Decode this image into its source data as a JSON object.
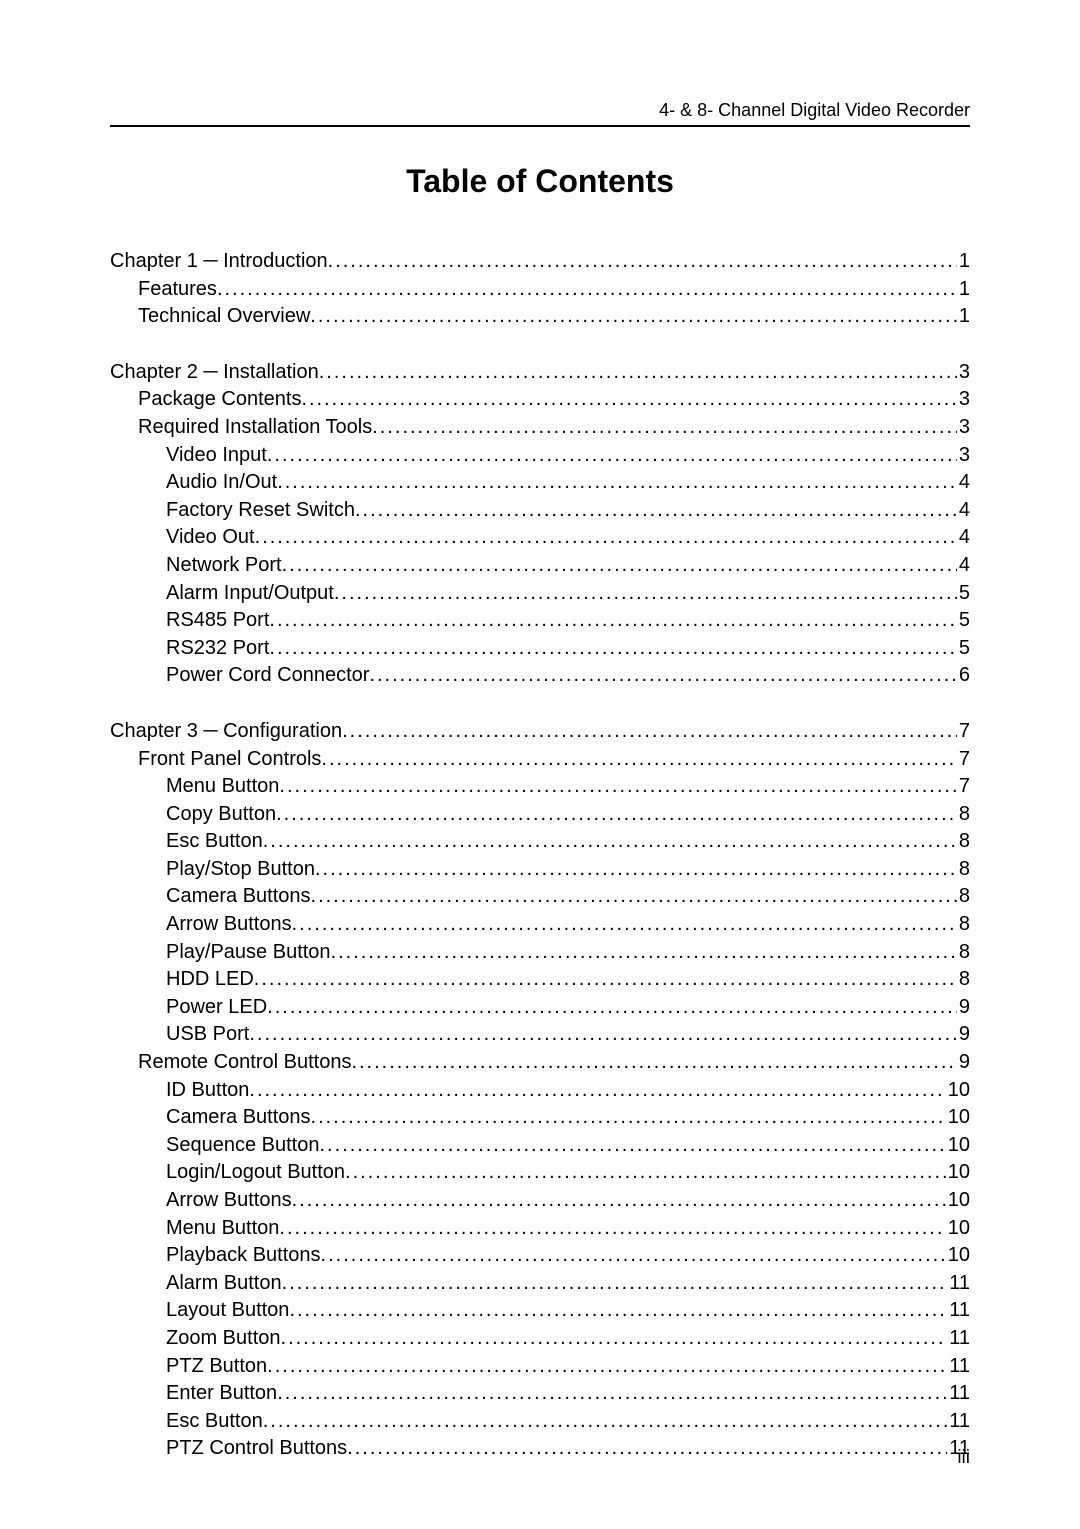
{
  "header": {
    "text": "4- & 8- Channel Digital Video Recorder"
  },
  "title": "Table of Contents",
  "footer": {
    "page_label": "iii"
  },
  "toc": {
    "sections": [
      {
        "entries": [
          {
            "label": "Chapter 1 ─ Introduction",
            "page": "1",
            "level": 0
          },
          {
            "label": "Features",
            "page": "1",
            "level": 1
          },
          {
            "label": "Technical Overview",
            "page": "1",
            "level": 1
          }
        ]
      },
      {
        "entries": [
          {
            "label": "Chapter 2 ─ Installation",
            "page": "3",
            "level": 0
          },
          {
            "label": "Package Contents",
            "page": "3",
            "level": 1
          },
          {
            "label": "Required Installation Tools",
            "page": "3",
            "level": 1
          },
          {
            "label": "Video Input",
            "page": "3",
            "level": 2
          },
          {
            "label": "Audio In/Out",
            "page": "4",
            "level": 2
          },
          {
            "label": "Factory Reset Switch",
            "page": "4",
            "level": 2
          },
          {
            "label": "Video Out",
            "page": "4",
            "level": 2
          },
          {
            "label": "Network Port",
            "page": "4",
            "level": 2
          },
          {
            "label": "Alarm Input/Output",
            "page": "5",
            "level": 2
          },
          {
            "label": "RS485 Port",
            "page": "5",
            "level": 2
          },
          {
            "label": "RS232 Port",
            "page": "5",
            "level": 2
          },
          {
            "label": "Power Cord Connector",
            "page": "6",
            "level": 2
          }
        ]
      },
      {
        "entries": [
          {
            "label": "Chapter 3 ─ Configuration",
            "page": "7",
            "level": 0
          },
          {
            "label": "Front Panel Controls",
            "page": "7",
            "level": 1
          },
          {
            "label": "Menu Button",
            "page": "7",
            "level": 2
          },
          {
            "label": "Copy Button",
            "page": "8",
            "level": 2
          },
          {
            "label": "Esc Button",
            "page": "8",
            "level": 2
          },
          {
            "label": "Play/Stop Button",
            "page": "8",
            "level": 2
          },
          {
            "label": "Camera Buttons",
            "page": "8",
            "level": 2
          },
          {
            "label": "Arrow Buttons",
            "page": "8",
            "level": 2
          },
          {
            "label": "Play/Pause Button",
            "page": "8",
            "level": 2
          },
          {
            "label": "HDD LED",
            "page": "8",
            "level": 2
          },
          {
            "label": "Power LED",
            "page": "9",
            "level": 2
          },
          {
            "label": "USB Port",
            "page": "9",
            "level": 2
          },
          {
            "label": "Remote Control Buttons",
            "page": "9",
            "level": 1
          },
          {
            "label": "ID Button",
            "page": "10",
            "level": 2
          },
          {
            "label": "Camera Buttons",
            "page": "10",
            "level": 2
          },
          {
            "label": "Sequence Button",
            "page": "10",
            "level": 2
          },
          {
            "label": "Login/Logout Button",
            "page": "10",
            "level": 2
          },
          {
            "label": "Arrow Buttons",
            "page": "10",
            "level": 2
          },
          {
            "label": "Menu Button",
            "page": "10",
            "level": 2
          },
          {
            "label": "Playback Buttons",
            "page": "10",
            "level": 2
          },
          {
            "label": "Alarm Button",
            "page": "11",
            "level": 2
          },
          {
            "label": "Layout Button",
            "page": "11",
            "level": 2
          },
          {
            "label": "Zoom Button",
            "page": "11",
            "level": 2
          },
          {
            "label": "PTZ Button",
            "page": "11",
            "level": 2
          },
          {
            "label": "Enter Button",
            "page": "11",
            "level": 2
          },
          {
            "label": "Esc Button",
            "page": "11",
            "level": 2
          },
          {
            "label": "PTZ Control Buttons",
            "page": "11",
            "level": 2
          }
        ]
      }
    ]
  }
}
